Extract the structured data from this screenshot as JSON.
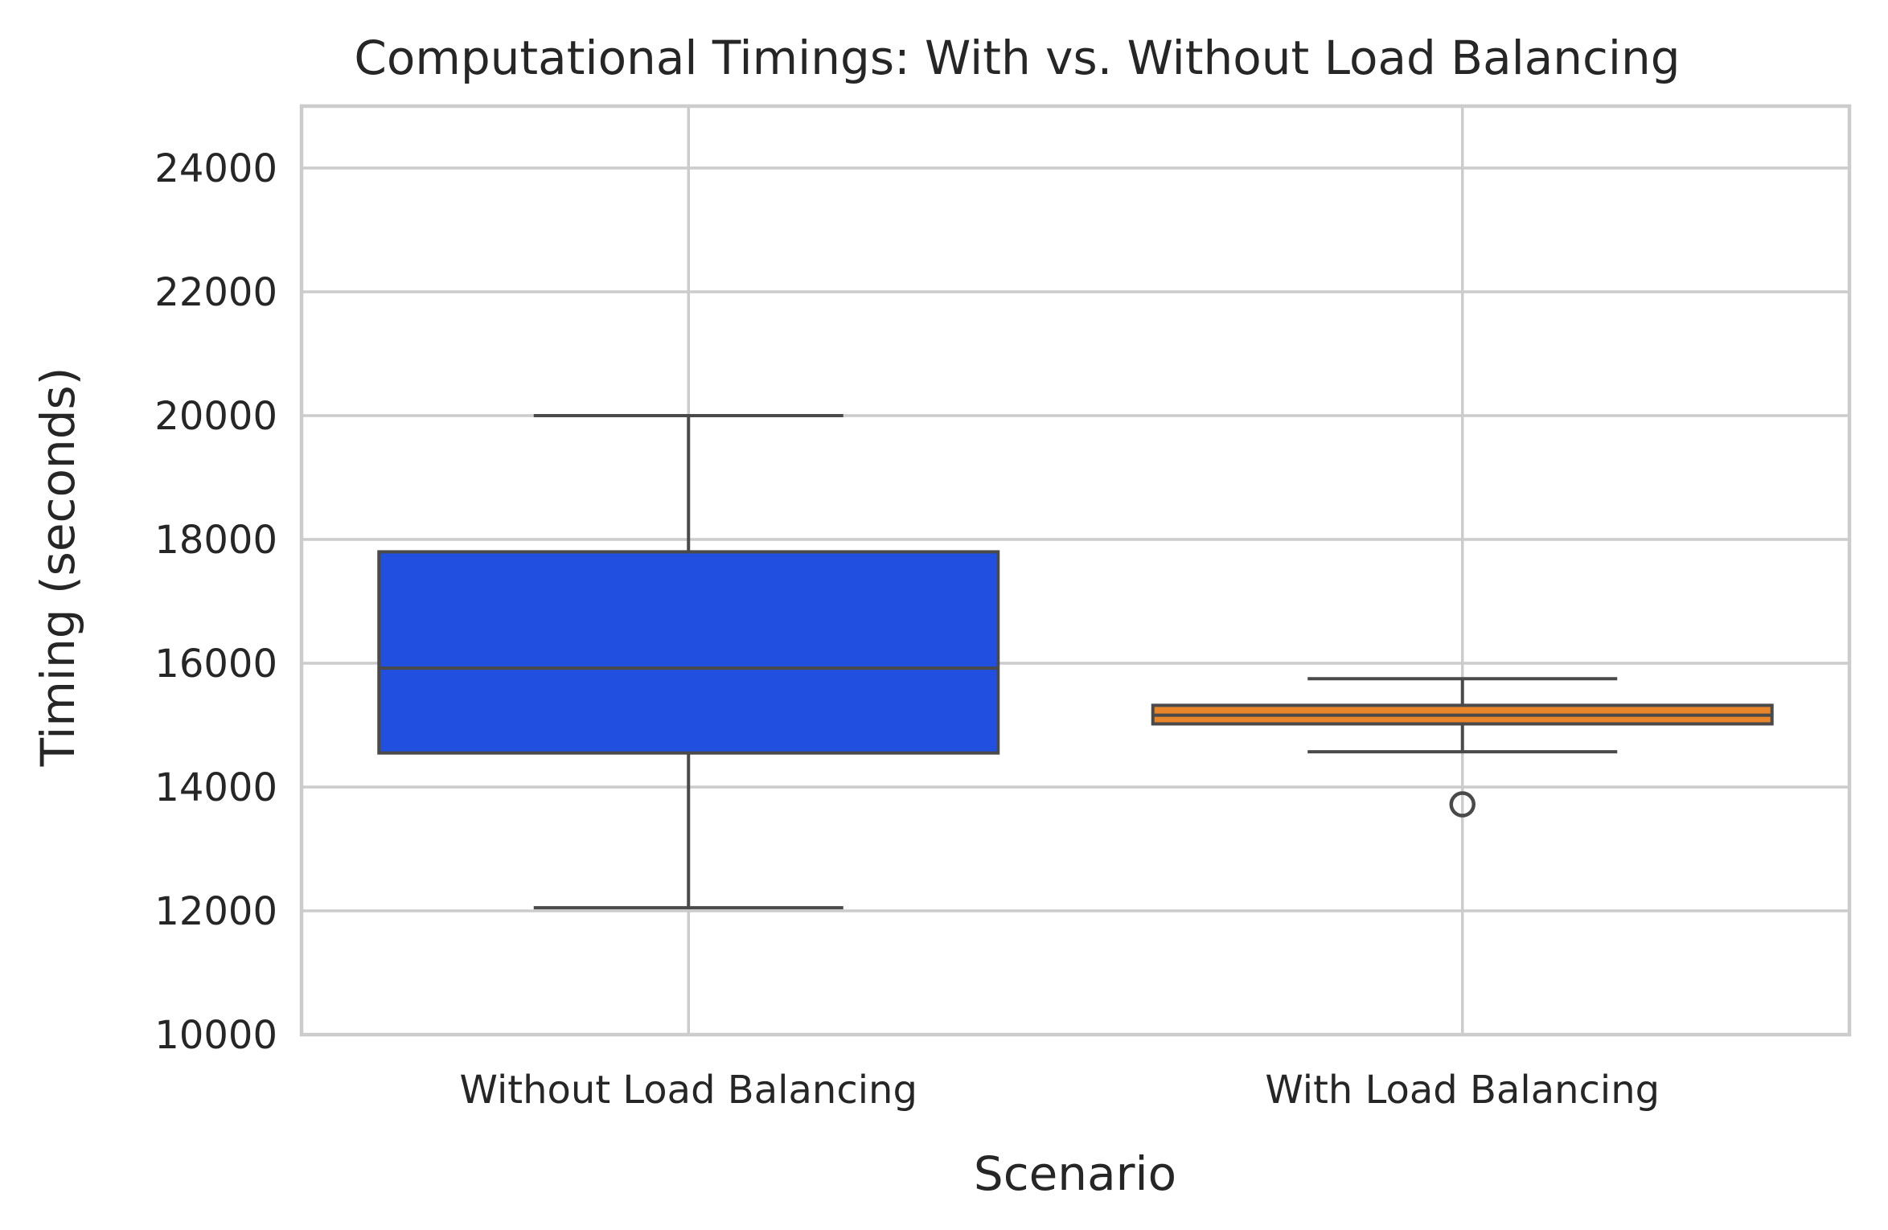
{
  "chart_data": {
    "type": "box",
    "title": "Computational Timings: With vs. Without Load Balancing",
    "xlabel": "Scenario",
    "ylabel": "Timing (seconds)",
    "ylim": [
      10000,
      25000
    ],
    "yticks": [
      10000,
      12000,
      14000,
      16000,
      18000,
      20000,
      22000,
      24000
    ],
    "ytick_labels": [
      "10000",
      "12000",
      "14000",
      "16000",
      "18000",
      "20000",
      "22000",
      "24000"
    ],
    "grid": true,
    "categories": [
      "Without Load Balancing",
      "With Load Balancing"
    ],
    "boxes": [
      {
        "category": "Without Load Balancing",
        "whisker_low": 12050,
        "q1": 14550,
        "median": 15920,
        "q3": 17800,
        "whisker_high": 20000,
        "outliers": [],
        "color": "#2150e0"
      },
      {
        "category": "With Load Balancing",
        "whisker_low": 14570,
        "q1": 15020,
        "median": 15160,
        "q3": 15320,
        "whisker_high": 15750,
        "outliers": [
          13720
        ],
        "color": "#e8842a"
      }
    ]
  }
}
